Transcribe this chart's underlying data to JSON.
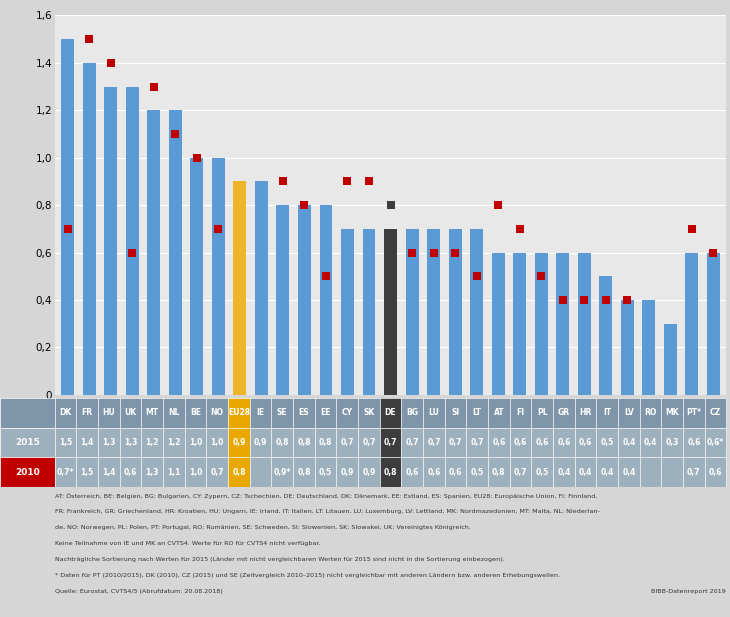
{
  "categories": [
    "DK",
    "FR",
    "HU",
    "UK",
    "MT",
    "NL",
    "BE",
    "NO",
    "EU28",
    "IE",
    "SE",
    "ES",
    "EE",
    "CY",
    "SK",
    "DE",
    "BG",
    "LU",
    "SI",
    "LT",
    "AT",
    "FI",
    "PL",
    "GR",
    "HR",
    "IT",
    "LV",
    "RO",
    "MK",
    "PT*",
    "CZ"
  ],
  "values_2015": [
    1.5,
    1.4,
    1.3,
    1.3,
    1.2,
    1.2,
    1.0,
    1.0,
    0.9,
    0.9,
    0.8,
    0.8,
    0.8,
    0.7,
    0.7,
    0.7,
    0.7,
    0.7,
    0.7,
    0.7,
    0.6,
    0.6,
    0.6,
    0.6,
    0.6,
    0.5,
    0.4,
    0.4,
    0.3,
    0.6,
    0.6
  ],
  "values_2010": [
    0.7,
    1.5,
    1.4,
    0.6,
    1.3,
    1.1,
    1.0,
    0.7,
    0.8,
    null,
    0.9,
    0.8,
    0.5,
    0.9,
    0.9,
    0.8,
    0.6,
    0.6,
    0.6,
    0.5,
    0.8,
    0.7,
    0.5,
    0.4,
    0.4,
    0.4,
    0.4,
    null,
    null,
    0.7,
    0.6
  ],
  "bar_colors": [
    "#5b9bd5",
    "#5b9bd5",
    "#5b9bd5",
    "#5b9bd5",
    "#5b9bd5",
    "#5b9bd5",
    "#5b9bd5",
    "#5b9bd5",
    "#f0b428",
    "#5b9bd5",
    "#5b9bd5",
    "#5b9bd5",
    "#5b9bd5",
    "#5b9bd5",
    "#5b9bd5",
    "#3d3d3d",
    "#5b9bd5",
    "#5b9bd5",
    "#5b9bd5",
    "#5b9bd5",
    "#5b9bd5",
    "#5b9bd5",
    "#5b9bd5",
    "#5b9bd5",
    "#5b9bd5",
    "#5b9bd5",
    "#5b9bd5",
    "#5b9bd5",
    "#5b9bd5",
    "#5b9bd5",
    "#5b9bd5"
  ],
  "marker_colors_2010": [
    "#c00000",
    "#c00000",
    "#c00000",
    "#c00000",
    "#c00000",
    "#c00000",
    "#c00000",
    "#c00000",
    "#f0b428",
    "#c00000",
    "#c00000",
    "#c00000",
    "#c00000",
    "#c00000",
    "#c00000",
    "#3d3d3d",
    "#c00000",
    "#c00000",
    "#c00000",
    "#c00000",
    "#c00000",
    "#c00000",
    "#c00000",
    "#c00000",
    "#c00000",
    "#c00000",
    "#c00000",
    "#c00000",
    "#c00000",
    "#c00000",
    "#c00000"
  ],
  "ylim": [
    0,
    1.6
  ],
  "yticks": [
    0,
    0.2,
    0.4,
    0.6,
    0.8,
    1.0,
    1.2,
    1.4,
    1.6
  ],
  "ytick_labels": [
    "0",
    "0,2",
    "0,4",
    "0,6",
    "0,8",
    "1,0",
    "1,2",
    "1,4",
    "1,6"
  ],
  "bg_color": "#d6d6d6",
  "plot_bg_color": "#e8e8e8",
  "bar_width": 0.6,
  "marker_size": 6,
  "header_bg": "#7f96aa",
  "row2015_bg": "#9db0be",
  "row2010_bg": "#c00000",
  "special_col_color": "#e8a800",
  "dark_col_color": "#3d3d3d",
  "eu28_idx": 8,
  "de_idx": 15,
  "values_2015_display": [
    "1,5",
    "1,4",
    "1,3",
    "1,3",
    "1,2",
    "1,2",
    "1,0",
    "1,0",
    "0,9",
    "0,9",
    "0,8",
    "0,8",
    "0,8",
    "0,7",
    "0,7",
    "0,7",
    "0,7",
    "0,7",
    "0,7",
    "0,7",
    "0,6",
    "0,6",
    "0,6",
    "0,6",
    "0,6",
    "0,5",
    "0,4",
    "0,4",
    "0,3",
    "0,6",
    "0,6*"
  ],
  "values_2010_display": [
    "0,7*",
    "1,5",
    "1,4",
    "0,6",
    "1,3",
    "1,1",
    "1,0",
    "0,7",
    "0,8",
    "",
    "0,9*",
    "0,8",
    "0,5",
    "0,9",
    "0,9",
    "0,8",
    "0,6",
    "0,6",
    "0,6",
    "0,5",
    "0,8",
    "0,7",
    "0,5",
    "0,4",
    "0,4",
    "0,4",
    "0,4",
    "",
    "",
    "0,7",
    "0,6"
  ],
  "footnote_lines": [
    "AT: Österreich, BE: Belgien, BG: Bulgarien, CY: Zypern, CZ: Tschechien, DE: Deutschland, DK: Dänemark, EE: Estland, ES: Spanien, EU28: Europäische Union, FI: Finnland,",
    "FR: Frankreich, GR: Griechenland, HR: Kroatien, HU: Ungarn, IE: Irland, IT: Italien, LT: Litauen, LU: Luxemburg, LV: Lettland, MK: Nordmazedonien, MT: Malta, NL: Niederlan-",
    "de, NO: Norwegen, PL: Polen, PT: Portugal, RO: Rumänien, SE: Schweden, SI: Slowenien, SK: Slowakei, UK: Vereinigtes Königreich.",
    "Keine Teilnahme von IE und MK an CVTS4. Werte für RO für CVTS4 nicht verfügbar.",
    "Nachträgliche Sortierung nach Werten für 2015 (Länder mit nicht vergleichbaren Werten für 2015 sind nicht in die Sortierung einbezogen).",
    "* Daten für PT (2010/2015), DK (2010), CZ (2015) und SE (Zeitvergleich 2010–2015) nicht vergleichbar mit anderen Ländern bzw. anderen Erhebungswellen.",
    "Quelle: Eurostat, CVTS4/5 (Abrufdatum: 20.08.2018)"
  ],
  "source_right": "BIBB-Datenreport 2019"
}
